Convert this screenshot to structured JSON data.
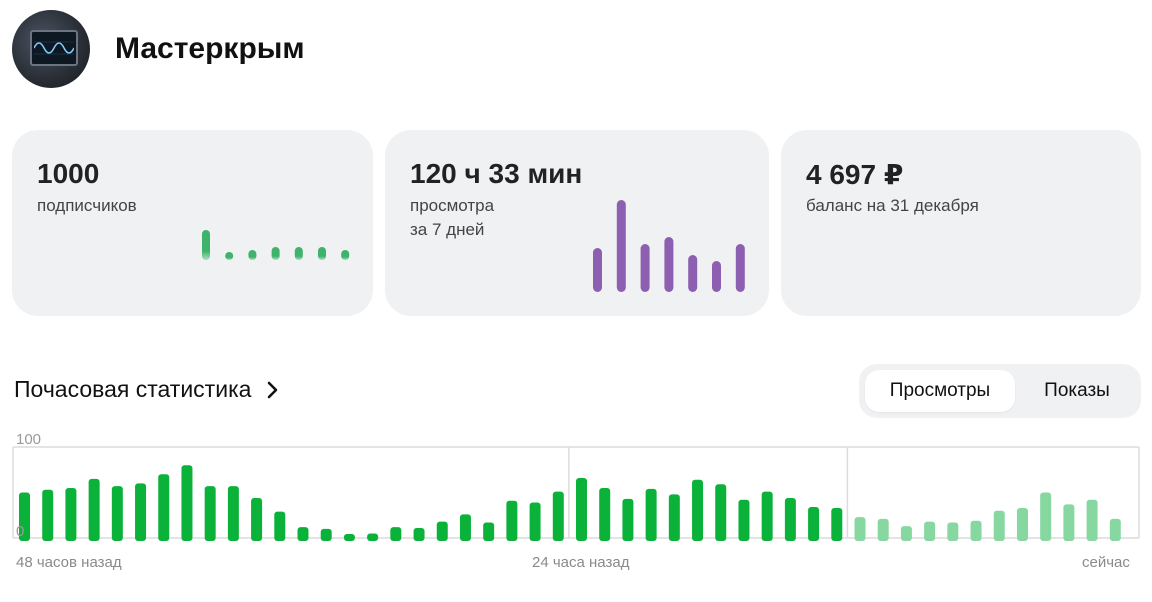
{
  "channel": {
    "name": "Мастеркрым"
  },
  "cards": [
    {
      "value": "1000",
      "caption": "подписчиков"
    },
    {
      "value": "120 ч 33 мин",
      "caption_line1": "просмотра",
      "caption_line2": "за 7 дней"
    },
    {
      "value": "4 697 ₽",
      "caption": "баланс на 31 декабря"
    }
  ],
  "mini_charts": {
    "subscribers": {
      "color": "#3db36b",
      "values": [
        30,
        8,
        10,
        13,
        13,
        13,
        10
      ]
    },
    "views": {
      "color": "#8d5fb0",
      "values": [
        44,
        92,
        48,
        55,
        37,
        31,
        48
      ]
    }
  },
  "hourly": {
    "title": "Почасовая статистика",
    "tabs": [
      "Просмотры",
      "Показы"
    ],
    "active_tab": "Просмотры"
  },
  "chart_data": {
    "type": "bar",
    "ylim": [
      0,
      100
    ],
    "yticks": [
      "100",
      "0"
    ],
    "xlabels": [
      "48 часов назад",
      "24 часа назад",
      "сейчас"
    ],
    "series": [
      {
        "values": [
          50,
          53,
          55,
          65,
          57,
          60,
          70,
          80,
          57,
          57,
          44,
          29,
          12,
          10,
          3,
          5,
          12,
          11,
          18,
          26,
          17,
          41,
          39,
          51,
          66,
          55,
          43,
          54,
          48,
          64,
          59,
          42,
          51,
          44,
          34,
          33,
          23,
          21,
          13,
          18,
          17,
          19,
          30,
          33,
          50,
          37,
          42,
          21
        ],
        "recent_from_index": 36,
        "color": "#0bb23a",
        "recent_color": "#86d7a0"
      }
    ]
  }
}
